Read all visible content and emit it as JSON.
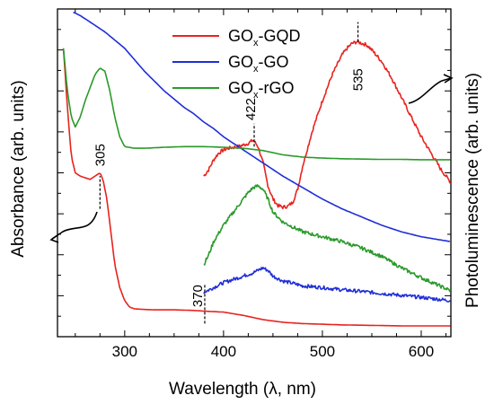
{
  "chart_data": {
    "type": "line",
    "xlabel": "Wavelength (λ, nm)",
    "ylabel_left": "Absorbance (arb. units)",
    "ylabel_right": "Photoluminescence (arb. units)",
    "xlim": [
      232,
      630
    ],
    "ylim": [
      0,
      100
    ],
    "x_ticks": [
      300,
      400,
      500,
      600
    ],
    "legend_position": "top-center",
    "legend": [
      {
        "prefix": "GO",
        "sub": "x",
        "suffix": "-GQD",
        "color": "#e8231e"
      },
      {
        "prefix": "GO",
        "sub": "x",
        "suffix": "-GO",
        "color": "#1f2ed6"
      },
      {
        "prefix": "GO",
        "sub": "x",
        "suffix": "-rGO",
        "color": "#2a9a2a"
      }
    ],
    "annotations": [
      {
        "text": "305",
        "x": 275
      },
      {
        "text": "422",
        "x": 431
      },
      {
        "text": "535",
        "x": 536
      },
      {
        "text": "370",
        "x": 381
      }
    ],
    "series": [
      {
        "key": "gqd_abs",
        "color": "#e8231e",
        "x": [
          238,
          242,
          246,
          250,
          255,
          260,
          265,
          270,
          275,
          278,
          282,
          286,
          290,
          295,
          300,
          305,
          310,
          320,
          330,
          340,
          350,
          360,
          370,
          380,
          400,
          420,
          440,
          460,
          480,
          500,
          520,
          540,
          560,
          580,
          600,
          630
        ],
        "y": [
          88,
          70,
          55,
          50,
          49,
          48.5,
          48,
          49,
          50,
          48,
          42,
          32,
          22,
          15,
          11,
          9,
          8.5,
          8.3,
          8.2,
          8.2,
          8.2,
          8.1,
          8.0,
          7.8,
          7.5,
          6.5,
          5.2,
          4.4,
          4.0,
          3.8,
          3.6,
          3.5,
          3.4,
          3.3,
          3.3,
          3.3
        ]
      },
      {
        "key": "gqd_pl",
        "color": "#e8231e",
        "x": [
          380,
          385,
          390,
          395,
          400,
          405,
          410,
          415,
          420,
          425,
          430,
          435,
          440,
          445,
          450,
          455,
          460,
          465,
          470,
          475,
          480,
          490,
          500,
          510,
          520,
          525,
          530,
          535,
          540,
          545,
          550,
          560,
          570,
          580,
          590,
          600,
          610,
          620,
          630
        ],
        "y": [
          49,
          51,
          54,
          56,
          57,
          57.5,
          57.8,
          58,
          58.5,
          59,
          60,
          58,
          53,
          46,
          42,
          40,
          39.5,
          39.8,
          41,
          45,
          52,
          63,
          72,
          80,
          86,
          88,
          89.5,
          90,
          89.5,
          89,
          87.5,
          84,
          79,
          73,
          67,
          61,
          56,
          51,
          47
        ]
      },
      {
        "key": "go_abs",
        "color": "#1f2ed6",
        "x": [
          248,
          255,
          260,
          270,
          280,
          290,
          300,
          310,
          320,
          330,
          340,
          350,
          360,
          370,
          380,
          390,
          400,
          420,
          440,
          460,
          480,
          500,
          520,
          540,
          560,
          580,
          600,
          630
        ],
        "y": [
          99,
          98,
          97,
          95,
          93,
          90.5,
          88,
          84.5,
          81,
          78,
          75,
          72.5,
          70,
          68,
          65.5,
          63.5,
          61,
          57,
          53,
          49,
          45.5,
          42,
          39,
          36.5,
          34,
          32,
          30.5,
          29
        ]
      },
      {
        "key": "go_pl",
        "color": "#1f2ed6",
        "x": [
          380,
          390,
          400,
          410,
          420,
          430,
          435,
          440,
          445,
          450,
          460,
          470,
          480,
          500,
          520,
          540,
          560,
          580,
          600,
          630
        ],
        "y": [
          13.5,
          15,
          16.5,
          17.5,
          18.5,
          19.5,
          20.3,
          21,
          20.2,
          18.5,
          17,
          16.3,
          15.5,
          15,
          14.3,
          13.8,
          13.2,
          12.6,
          12,
          11
        ]
      },
      {
        "key": "rgo_abs",
        "color": "#2a9a2a",
        "x": [
          238,
          242,
          246,
          250,
          255,
          260,
          265,
          270,
          275,
          280,
          285,
          290,
          295,
          300,
          310,
          320,
          340,
          360,
          380,
          400,
          420,
          440,
          460,
          480,
          500,
          520,
          540,
          560,
          580,
          600,
          630
        ],
        "y": [
          88,
          75,
          67,
          64,
          67,
          72,
          76,
          80,
          82,
          81,
          75,
          67,
          61,
          58,
          57.5,
          57.5,
          57.8,
          58,
          58,
          57.8,
          57.5,
          56.8,
          55.5,
          54.8,
          54.5,
          54.3,
          54.2,
          54.1,
          54.1,
          54,
          54
        ]
      },
      {
        "key": "rgo_pl",
        "color": "#2a9a2a",
        "x": [
          380,
          385,
          390,
          400,
          410,
          420,
          425,
          430,
          435,
          440,
          445,
          450,
          460,
          470,
          480,
          500,
          520,
          540,
          560,
          580,
          600,
          630
        ],
        "y": [
          22,
          25,
          29,
          34,
          38,
          42,
          44,
          45.5,
          46,
          45,
          42,
          38,
          35,
          33.5,
          32,
          30.5,
          29,
          27,
          24.5,
          21,
          18,
          14
        ]
      }
    ]
  }
}
